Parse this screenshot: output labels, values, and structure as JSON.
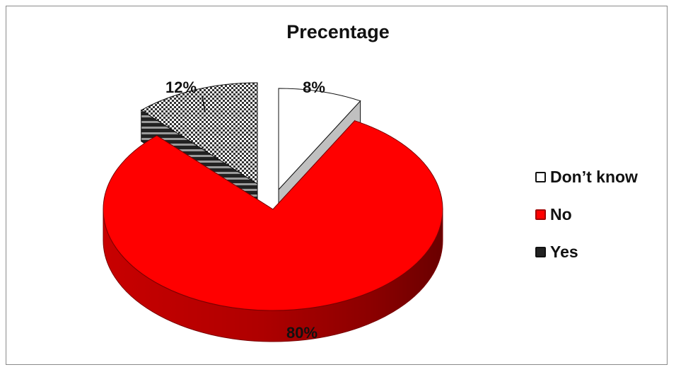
{
  "chart_data": {
    "type": "pie",
    "title": "Precentage",
    "categories": [
      "Don’t know",
      "No",
      "Yes"
    ],
    "values": [
      8,
      80,
      12
    ],
    "data_labels": [
      "8%",
      "80%",
      "12%"
    ],
    "style": "3d-exploded",
    "legend_placement": "right",
    "colors": {
      "Don’t know": "#ffffff",
      "No": "#ff0000",
      "Yes": "#333333"
    }
  }
}
